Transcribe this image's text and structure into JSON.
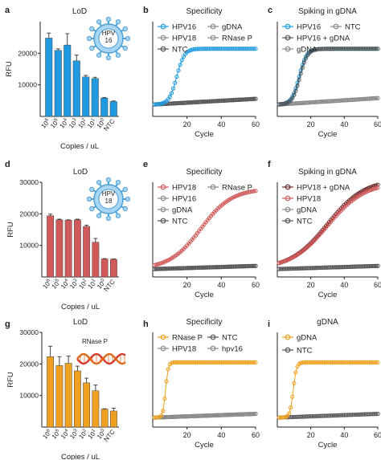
{
  "figure": {
    "colors": {
      "blue": "#1f9ae0",
      "red": "#d05a5a",
      "orange": "#f0a020",
      "gray": "#8a8a8a",
      "dark": "#555555",
      "virus_fill": "#a9d6f2",
      "virus_stroke": "#4a9fd8"
    },
    "icons": [
      "hpv16-virus-icon",
      "hpv18-virus-icon",
      "rnase-p-dna-helix-icon"
    ]
  },
  "chart_data": [
    {
      "panel": "a",
      "type": "bar",
      "title": "LoD",
      "color": "#1f9ae0",
      "xlabel": "Copies / uL",
      "ylabel": "RFU",
      "categories": [
        "10^6",
        "10^5",
        "10^4",
        "10^3",
        "10^2",
        "10^1",
        "10^0",
        "NTC"
      ],
      "values": [
        24800,
        20900,
        22600,
        17600,
        12500,
        12000,
        5800,
        4700
      ],
      "errors": [
        1600,
        500,
        3600,
        1800,
        500,
        400,
        200,
        200
      ],
      "ylim": [
        0,
        30000
      ],
      "yticks": [
        10000,
        20000
      ],
      "virus_label": "HPV\n16"
    },
    {
      "panel": "b",
      "type": "line",
      "title": "Specificity",
      "xlabel": "Cycle",
      "xlim": [
        0,
        60
      ],
      "ylim": [
        0,
        28000
      ],
      "xticks": [
        20,
        40,
        60
      ],
      "legend": [
        "HPV16",
        "gDNA",
        "HPV18",
        "RNase P",
        "NTC"
      ],
      "series": [
        {
          "name": "HPV16",
          "type": "sigmoid",
          "color": "#1f9ae0",
          "base": 3500,
          "plateau": 20000,
          "midpoint": 14,
          "steepness": 0.45
        },
        {
          "name": "gDNA",
          "type": "linear",
          "color": "#8a8a8a",
          "start": 3500,
          "end": 5200
        },
        {
          "name": "HPV18",
          "type": "linear",
          "color": "#8a8a8a",
          "start": 3500,
          "end": 5200
        },
        {
          "name": "RNase P",
          "type": "linear",
          "color": "#8a8a8a",
          "start": 3500,
          "end": 5200
        },
        {
          "name": "NTC",
          "type": "linear",
          "color": "#555555",
          "start": 3500,
          "end": 5200
        }
      ]
    },
    {
      "panel": "c",
      "type": "line",
      "title": "Spiking in gDNA",
      "xlabel": "Cycle",
      "xlim": [
        0,
        60
      ],
      "ylim": [
        0,
        28000
      ],
      "xticks": [
        20,
        40,
        60
      ],
      "legend": [
        "HPV16",
        "NTC",
        "HPV16 + gDNA",
        "gDNA"
      ],
      "series": [
        {
          "name": "HPV16",
          "type": "sigmoid",
          "color": "#1f9ae0",
          "base": 3500,
          "plateau": 20000,
          "midpoint": 13,
          "steepness": 0.45
        },
        {
          "name": "HPV16 + gDNA",
          "type": "sigmoid",
          "color": "#555555",
          "base": 3500,
          "plateau": 20000,
          "midpoint": 13.5,
          "steepness": 0.45
        },
        {
          "name": "NTC",
          "type": "linear",
          "color": "#8a8a8a",
          "start": 3500,
          "end": 5400
        },
        {
          "name": "gDNA",
          "type": "linear",
          "color": "#8a8a8a",
          "start": 3500,
          "end": 5400
        }
      ]
    },
    {
      "panel": "d",
      "type": "bar",
      "title": "LoD",
      "color": "#d05a5a",
      "xlabel": "Copies / uL",
      "ylabel": "RFU",
      "categories": [
        "10^6",
        "10^5",
        "10^4",
        "10^3",
        "10^2",
        "10^1",
        "10^0",
        "NTC"
      ],
      "values": [
        19400,
        18100,
        18000,
        18100,
        16000,
        11000,
        5700,
        5600
      ],
      "errors": [
        500,
        200,
        100,
        200,
        400,
        1200,
        100,
        100
      ],
      "ylim": [
        0,
        30000
      ],
      "yticks": [
        10000,
        20000,
        30000
      ],
      "virus_label": "HPV\n18"
    },
    {
      "panel": "e",
      "type": "line",
      "title": "Specificity",
      "xlabel": "Cycle",
      "xlim": [
        0,
        60
      ],
      "ylim": [
        0,
        30000
      ],
      "xticks": [
        20,
        40,
        60
      ],
      "legend": [
        "HPV18",
        "RNase P",
        "HPV16",
        "gDNA",
        "NTC"
      ],
      "series": [
        {
          "name": "HPV18",
          "type": "sigmoid",
          "color": "#d05a5a",
          "base": 2500,
          "plateau": 28000,
          "midpoint": 28,
          "steepness": 0.11
        },
        {
          "name": "RNase P",
          "type": "linear",
          "color": "#8a8a8a",
          "start": 2500,
          "end": 3500
        },
        {
          "name": "HPV16",
          "type": "linear",
          "color": "#8a8a8a",
          "start": 2500,
          "end": 3500
        },
        {
          "name": "gDNA",
          "type": "linear",
          "color": "#8a8a8a",
          "start": 2500,
          "end": 3500
        },
        {
          "name": "NTC",
          "type": "linear",
          "color": "#555555",
          "start": 2500,
          "end": 3500
        }
      ]
    },
    {
      "panel": "f",
      "type": "line",
      "title": "Spiking in gDNA",
      "xlabel": "Cycle",
      "xlim": [
        0,
        60
      ],
      "ylim": [
        0,
        30000
      ],
      "xticks": [
        20,
        40,
        60
      ],
      "legend": [
        "HPV18 + gDNA",
        "HPV18",
        "gDNA",
        "NTC"
      ],
      "series": [
        {
          "name": "HPV18 + gDNA",
          "type": "sigmoid",
          "color": "#6b2c2c",
          "base": 2500,
          "plateau": 31000,
          "midpoint": 30,
          "steepness": 0.09
        },
        {
          "name": "HPV18",
          "type": "sigmoid",
          "color": "#d05a5a",
          "base": 2500,
          "plateau": 30000,
          "midpoint": 30,
          "steepness": 0.09
        },
        {
          "name": "gDNA",
          "type": "linear",
          "color": "#8a8a8a",
          "start": 2500,
          "end": 3500
        },
        {
          "name": "NTC",
          "type": "linear",
          "color": "#555555",
          "start": 2500,
          "end": 3500
        }
      ]
    },
    {
      "panel": "g",
      "type": "bar",
      "title": "LoD",
      "color": "#f0a020",
      "xlabel": "Copies / uL",
      "ylabel": "RFU",
      "categories": [
        "10^6",
        "10^5",
        "10^4",
        "10^3",
        "10^2",
        "10^1",
        "10^0",
        "NTC"
      ],
      "values": [
        22300,
        19500,
        20200,
        17800,
        14000,
        11500,
        5700,
        5100
      ],
      "errors": [
        3300,
        2800,
        2300,
        1500,
        1500,
        1800,
        100,
        900
      ],
      "ylim": [
        0,
        30000
      ],
      "yticks": [
        10000,
        20000,
        30000
      ],
      "icon_label": "RNase P"
    },
    {
      "panel": "h",
      "type": "line",
      "title": "Specificity",
      "xlabel": "Cycle",
      "xlim": [
        0,
        60
      ],
      "ylim": [
        0,
        30000
      ],
      "xticks": [
        20,
        40,
        60
      ],
      "legend": [
        "RNase P",
        "NTC",
        "HPV18",
        "hpv16"
      ],
      "series": [
        {
          "name": "RNase P",
          "type": "sigmoid",
          "color": "#f0a020",
          "base": 3000,
          "plateau": 20500,
          "midpoint": 7.5,
          "steepness": 1.3
        },
        {
          "name": "NTC",
          "type": "linear",
          "color": "#555555",
          "start": 3000,
          "end": 4200
        },
        {
          "name": "HPV18",
          "type": "linear",
          "color": "#8a8a8a",
          "start": 3000,
          "end": 4200
        },
        {
          "name": "hpv16",
          "type": "linear",
          "color": "#8a8a8a",
          "start": 3000,
          "end": 4200
        }
      ]
    },
    {
      "panel": "i",
      "type": "line",
      "title": "gDNA",
      "xlabel": "Cycle",
      "xlim": [
        0,
        60
      ],
      "ylim": [
        0,
        30000
      ],
      "xticks": [
        20,
        40,
        60
      ],
      "legend": [
        "gDNA",
        "NTC"
      ],
      "series": [
        {
          "name": "gDNA",
          "type": "sigmoid",
          "color": "#f0a020",
          "base": 3000,
          "plateau": 20500,
          "midpoint": 9.5,
          "steepness": 1.0
        },
        {
          "name": "NTC",
          "type": "linear",
          "color": "#555555",
          "start": 3000,
          "end": 4200
        }
      ]
    }
  ]
}
